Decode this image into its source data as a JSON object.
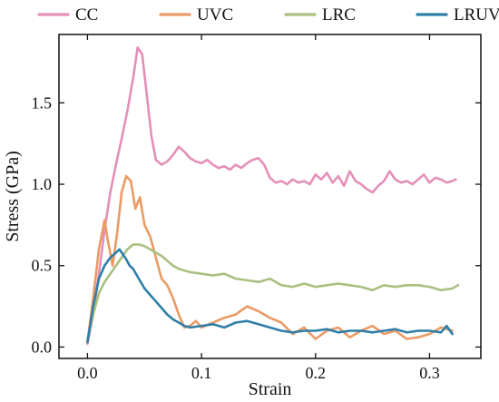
{
  "chart_data": {
    "type": "line",
    "xlabel": "Strain",
    "ylabel": "Stress (GPa)",
    "xlim": [
      -0.025,
      0.345
    ],
    "ylim": [
      -0.07,
      1.92
    ],
    "xticks": [
      0.0,
      0.1,
      0.2,
      0.3
    ],
    "xtick_labels": [
      "0.0",
      "0.1",
      "0.2",
      "0.3"
    ],
    "yticks": [
      0.0,
      0.5,
      1.0,
      1.5
    ],
    "ytick_labels": [
      "0.0",
      "0.5",
      "1.0",
      "1.5"
    ],
    "grid": false,
    "legend_position": "top, outside plot, single row",
    "series": [
      {
        "name": "CC",
        "color": "#e48fb8",
        "x": [
          0.0,
          0.005,
          0.01,
          0.015,
          0.02,
          0.025,
          0.03,
          0.035,
          0.04,
          0.044,
          0.048,
          0.052,
          0.056,
          0.06,
          0.065,
          0.07,
          0.075,
          0.08,
          0.085,
          0.09,
          0.095,
          0.1,
          0.105,
          0.11,
          0.115,
          0.12,
          0.125,
          0.13,
          0.135,
          0.14,
          0.145,
          0.15,
          0.155,
          0.16,
          0.165,
          0.17,
          0.175,
          0.18,
          0.185,
          0.19,
          0.195,
          0.2,
          0.205,
          0.21,
          0.215,
          0.22,
          0.225,
          0.23,
          0.235,
          0.24,
          0.245,
          0.25,
          0.255,
          0.26,
          0.265,
          0.27,
          0.275,
          0.28,
          0.285,
          0.29,
          0.295,
          0.3,
          0.305,
          0.31,
          0.315,
          0.32,
          0.323
        ],
        "y": [
          0.02,
          0.2,
          0.45,
          0.72,
          0.95,
          1.12,
          1.28,
          1.45,
          1.65,
          1.84,
          1.8,
          1.55,
          1.3,
          1.15,
          1.12,
          1.14,
          1.18,
          1.23,
          1.2,
          1.16,
          1.14,
          1.13,
          1.15,
          1.12,
          1.1,
          1.11,
          1.09,
          1.12,
          1.1,
          1.13,
          1.15,
          1.16,
          1.12,
          1.04,
          1.01,
          1.02,
          1.0,
          1.03,
          1.01,
          1.02,
          1.0,
          1.06,
          1.03,
          1.07,
          1.01,
          1.05,
          0.99,
          1.08,
          1.02,
          1.0,
          0.97,
          0.95,
          0.99,
          1.02,
          1.08,
          1.03,
          1.01,
          1.02,
          1.0,
          1.03,
          1.06,
          1.01,
          1.04,
          1.03,
          1.01,
          1.02,
          1.03
        ]
      },
      {
        "name": "UVC",
        "color": "#ec9a65",
        "x": [
          0.0,
          0.005,
          0.01,
          0.015,
          0.018,
          0.022,
          0.026,
          0.03,
          0.034,
          0.038,
          0.042,
          0.046,
          0.05,
          0.055,
          0.06,
          0.065,
          0.07,
          0.075,
          0.08,
          0.085,
          0.09,
          0.095,
          0.1,
          0.11,
          0.12,
          0.13,
          0.14,
          0.15,
          0.16,
          0.17,
          0.18,
          0.19,
          0.2,
          0.21,
          0.22,
          0.23,
          0.24,
          0.25,
          0.26,
          0.27,
          0.28,
          0.29,
          0.3,
          0.31,
          0.32
        ],
        "y": [
          0.03,
          0.3,
          0.6,
          0.78,
          0.65,
          0.5,
          0.7,
          0.95,
          1.05,
          1.02,
          0.85,
          0.92,
          0.75,
          0.68,
          0.55,
          0.42,
          0.38,
          0.3,
          0.2,
          0.12,
          0.13,
          0.16,
          0.12,
          0.15,
          0.18,
          0.2,
          0.25,
          0.22,
          0.18,
          0.15,
          0.08,
          0.12,
          0.05,
          0.1,
          0.12,
          0.06,
          0.1,
          0.13,
          0.08,
          0.1,
          0.05,
          0.06,
          0.08,
          0.12,
          0.1
        ]
      },
      {
        "name": "LRC",
        "color": "#a9c07f",
        "x": [
          0.0,
          0.005,
          0.01,
          0.015,
          0.02,
          0.025,
          0.03,
          0.035,
          0.04,
          0.045,
          0.05,
          0.055,
          0.06,
          0.065,
          0.07,
          0.075,
          0.08,
          0.085,
          0.09,
          0.1,
          0.11,
          0.12,
          0.13,
          0.14,
          0.15,
          0.16,
          0.17,
          0.18,
          0.19,
          0.2,
          0.21,
          0.22,
          0.23,
          0.24,
          0.25,
          0.26,
          0.27,
          0.28,
          0.29,
          0.3,
          0.31,
          0.32,
          0.325
        ],
        "y": [
          0.05,
          0.2,
          0.33,
          0.4,
          0.45,
          0.5,
          0.55,
          0.6,
          0.63,
          0.63,
          0.62,
          0.6,
          0.58,
          0.56,
          0.53,
          0.5,
          0.48,
          0.47,
          0.46,
          0.45,
          0.44,
          0.45,
          0.42,
          0.41,
          0.4,
          0.42,
          0.38,
          0.37,
          0.39,
          0.37,
          0.38,
          0.39,
          0.38,
          0.37,
          0.35,
          0.38,
          0.37,
          0.38,
          0.38,
          0.37,
          0.35,
          0.36,
          0.38
        ]
      },
      {
        "name": "LRUVC",
        "color": "#2f7fa8",
        "x": [
          0.0,
          0.005,
          0.01,
          0.015,
          0.02,
          0.025,
          0.028,
          0.031,
          0.034,
          0.037,
          0.04,
          0.045,
          0.05,
          0.055,
          0.06,
          0.065,
          0.07,
          0.075,
          0.08,
          0.085,
          0.09,
          0.1,
          0.11,
          0.12,
          0.13,
          0.14,
          0.15,
          0.16,
          0.17,
          0.18,
          0.19,
          0.2,
          0.21,
          0.22,
          0.23,
          0.24,
          0.25,
          0.26,
          0.27,
          0.28,
          0.29,
          0.3,
          0.31,
          0.315,
          0.32
        ],
        "y": [
          0.03,
          0.25,
          0.42,
          0.5,
          0.55,
          0.58,
          0.6,
          0.57,
          0.54,
          0.5,
          0.48,
          0.42,
          0.36,
          0.32,
          0.28,
          0.24,
          0.2,
          0.17,
          0.15,
          0.13,
          0.12,
          0.13,
          0.14,
          0.12,
          0.15,
          0.16,
          0.14,
          0.12,
          0.1,
          0.09,
          0.1,
          0.1,
          0.11,
          0.09,
          0.1,
          0.1,
          0.09,
          0.1,
          0.11,
          0.09,
          0.1,
          0.1,
          0.09,
          0.13,
          0.08
        ]
      }
    ]
  }
}
